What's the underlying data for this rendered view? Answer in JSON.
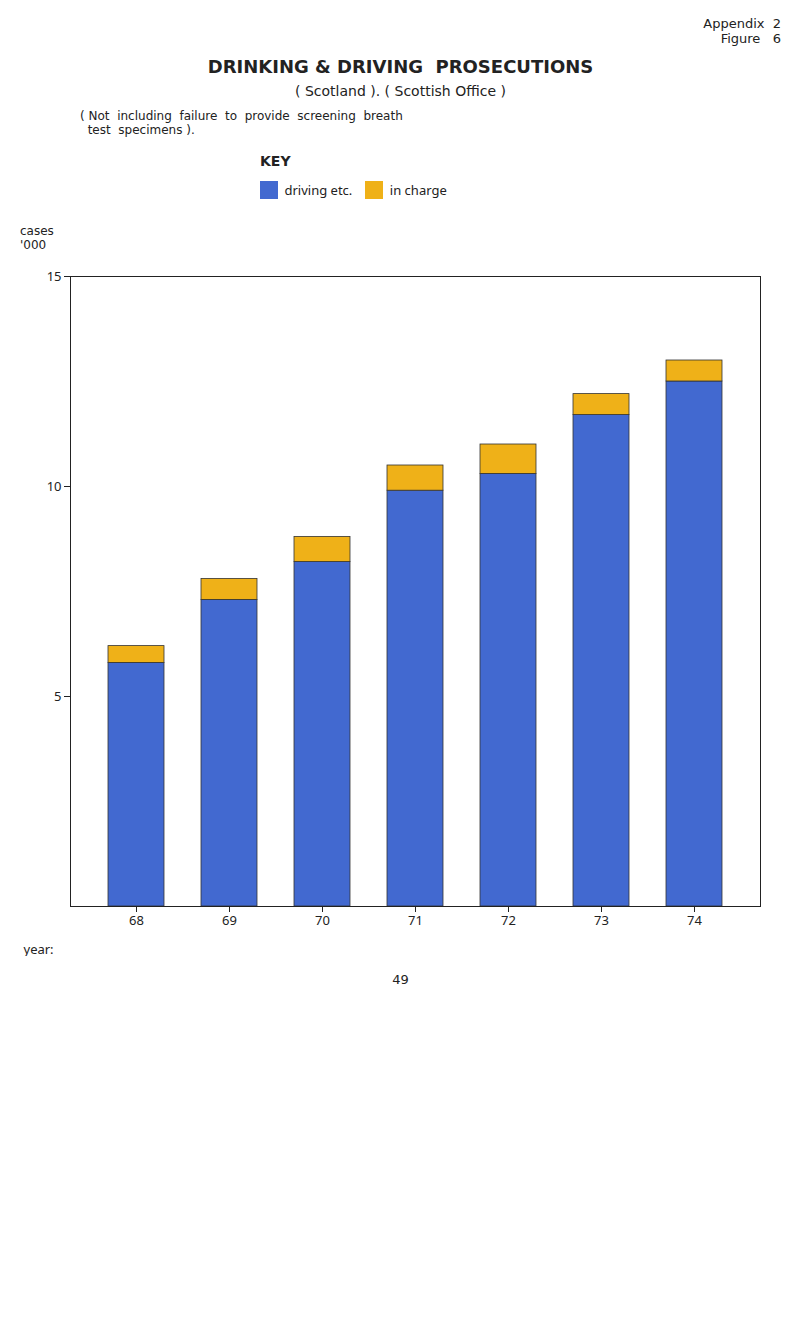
{
  "chart_data": {
    "type": "bar",
    "stacked": true,
    "title": "DRINKING & DRIVING  PROSECUTIONS",
    "subtitle": "( Scotland ). ( Scottish Office )",
    "annotations": [
      "Appendix  2",
      "Figure   6",
      "( Not  including  failure  to  provide  screening  breath\n  test  specimens ).",
      "KEY",
      "49"
    ],
    "x_label": "year:",
    "y_label": "cases\n'000",
    "categories": [
      "68",
      "69",
      "70",
      "71",
      "72",
      "73",
      "74"
    ],
    "series": [
      {
        "name": "driving etc.",
        "values": [
          5.8,
          7.3,
          8.2,
          9.9,
          10.3,
          11.7,
          12.5
        ]
      },
      {
        "name": "in charge",
        "values": [
          0.4,
          0.5,
          0.6,
          0.6,
          0.7,
          0.5,
          0.5
        ]
      }
    ],
    "ylim": [
      0,
      15
    ],
    "yticks": [
      5,
      10,
      15
    ],
    "grid": false,
    "legend": "top"
  }
}
